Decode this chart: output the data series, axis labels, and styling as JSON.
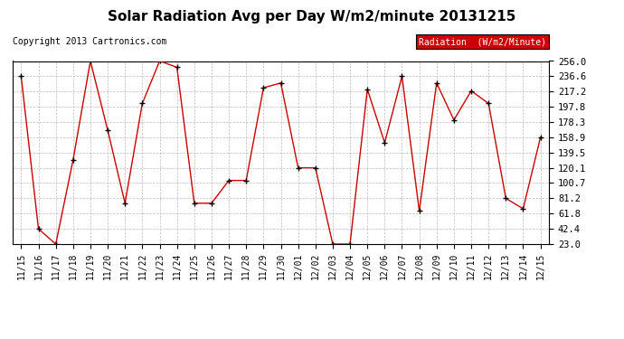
{
  "title": "Solar Radiation Avg per Day W/m2/minute 20131215",
  "copyright": "Copyright 2013 Cartronics.com",
  "legend_label": "Radiation  (W/m2/Minute)",
  "dates": [
    "11/15",
    "11/16",
    "11/17",
    "11/18",
    "11/19",
    "11/20",
    "11/21",
    "11/22",
    "11/23",
    "11/24",
    "11/25",
    "11/26",
    "11/27",
    "11/28",
    "11/29",
    "11/30",
    "12/01",
    "12/02",
    "12/03",
    "12/04",
    "12/05",
    "12/06",
    "12/07",
    "12/08",
    "12/09",
    "12/10",
    "12/11",
    "12/12",
    "12/13",
    "12/14",
    "12/15"
  ],
  "values": [
    236.6,
    42.4,
    23.0,
    130.0,
    256.0,
    168.0,
    75.0,
    202.0,
    256.0,
    248.0,
    75.0,
    75.0,
    104.0,
    104.0,
    222.0,
    228.0,
    120.1,
    120.1,
    23.0,
    23.0,
    220.0,
    152.0,
    236.6,
    65.0,
    228.0,
    181.0,
    218.0,
    202.0,
    81.2,
    68.0,
    158.9
  ],
  "yticks": [
    23.0,
    42.4,
    61.8,
    81.2,
    100.7,
    120.1,
    139.5,
    158.9,
    178.3,
    197.8,
    217.2,
    236.6,
    256.0
  ],
  "ylim": [
    23.0,
    256.0
  ],
  "line_color": "#cc0000",
  "marker_color": "#000000",
  "bg_color": "#ffffff",
  "grid_color": "#bbbbbb",
  "title_fontsize": 11,
  "copyright_fontsize": 7,
  "legend_bg": "#cc0000",
  "legend_fg": "#ffffff"
}
